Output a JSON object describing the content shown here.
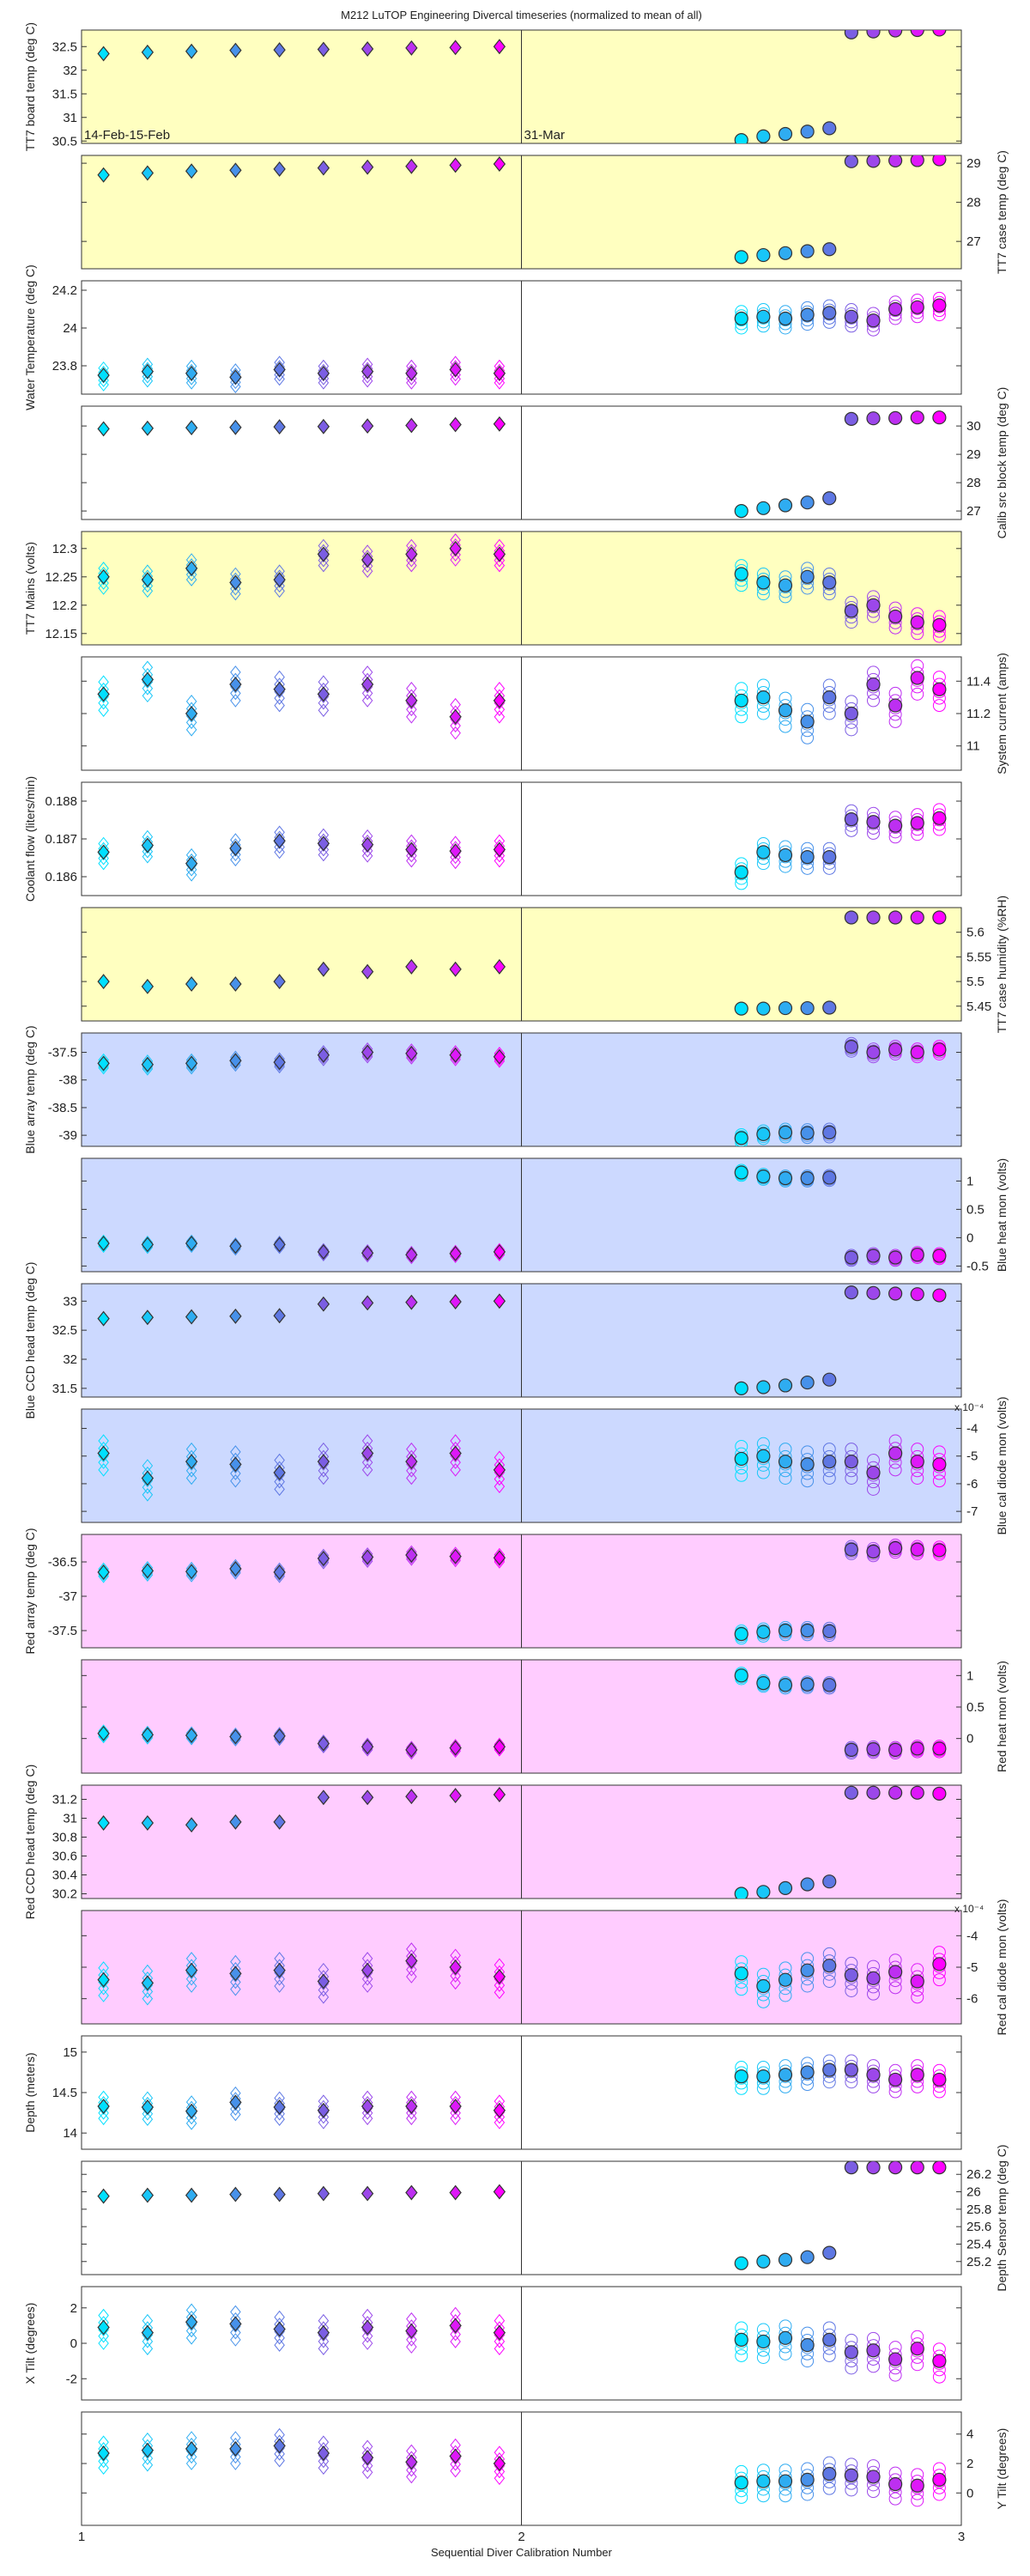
{
  "title": "M212  LuTOP Engineering Divercal timeseries (normalized to mean of all)",
  "xlabel": "Sequential Diver Calibration Number",
  "x_ticks": [
    "1",
    "2",
    "3"
  ],
  "annotations": [
    {
      "panel": 0,
      "text": "14-Feb-15-Feb",
      "x": 1.0
    },
    {
      "panel": 0,
      "text": "31-Mar",
      "x": 2.0
    }
  ],
  "colors": {
    "yellow_bg": "#ffffc0",
    "blue_bg": "#ccd9ff",
    "pink_bg": "#ffccff",
    "white_bg": "#ffffff",
    "gradient_start": "#00e0ff",
    "gradient_mid": "#6a6ae0",
    "gradient_end": "#ff00ff"
  },
  "chart_data": {
    "type": "scatter",
    "xlim": [
      1,
      3
    ],
    "group1_x": [
      1.05,
      1.15,
      1.25,
      1.35,
      1.45,
      1.55,
      1.65,
      1.75,
      1.85,
      1.95
    ],
    "group2_x": [
      2.5,
      2.55,
      2.6,
      2.65,
      2.7,
      2.75,
      2.8,
      2.85,
      2.9,
      2.95
    ],
    "marker_group1": "diamond",
    "marker_group2": "circle",
    "panels": [
      {
        "ylabel": "TT7 board temp (deg C)",
        "side": "left",
        "bg": "yellow",
        "ylim": [
          30.45,
          32.85
        ],
        "yticks": [
          "30.5",
          "31",
          "31.5",
          "32",
          "32.5"
        ],
        "g1_means": [
          32.35,
          32.38,
          32.4,
          32.42,
          32.43,
          32.44,
          32.45,
          32.47,
          32.48,
          32.5
        ],
        "g2_means": [
          30.52,
          30.6,
          30.65,
          30.7,
          30.77,
          32.8,
          32.82,
          32.84,
          32.85,
          32.86
        ],
        "spread": 0
      },
      {
        "ylabel": "TT7 case temp (deg C)",
        "side": "right",
        "bg": "yellow",
        "ylim": [
          26.3,
          29.2
        ],
        "yticks": [
          "27",
          "28",
          "29"
        ],
        "g1_means": [
          28.7,
          28.75,
          28.8,
          28.82,
          28.85,
          28.88,
          28.9,
          28.92,
          28.95,
          28.98
        ],
        "g2_means": [
          26.6,
          26.65,
          26.7,
          26.75,
          26.8,
          29.05,
          29.06,
          29.07,
          29.08,
          29.1
        ],
        "spread": 0
      },
      {
        "ylabel": "Water Temperature (deg C)",
        "side": "left",
        "bg": "white",
        "ylim": [
          23.65,
          24.25
        ],
        "yticks": [
          "23.8",
          "24",
          "24.2"
        ],
        "g1_means": [
          23.75,
          23.77,
          23.76,
          23.74,
          23.78,
          23.76,
          23.77,
          23.76,
          23.78,
          23.76
        ],
        "g2_means": [
          24.05,
          24.06,
          24.05,
          24.07,
          24.08,
          24.06,
          24.04,
          24.1,
          24.11,
          24.12
        ],
        "spread": 0.05
      },
      {
        "ylabel": "Calib src block temp (deg C)",
        "side": "right",
        "bg": "white",
        "ylim": [
          26.7,
          30.7
        ],
        "yticks": [
          "27",
          "28",
          "29",
          "30"
        ],
        "g1_means": [
          29.9,
          29.92,
          29.94,
          29.95,
          29.97,
          29.98,
          30.0,
          30.02,
          30.05,
          30.07
        ],
        "g2_means": [
          27.0,
          27.1,
          27.2,
          27.3,
          27.45,
          30.25,
          30.27,
          30.28,
          30.3,
          30.3
        ],
        "spread": 0
      },
      {
        "ylabel": "TT7 Mains  (volts)",
        "side": "left",
        "bg": "yellow",
        "ylim": [
          12.13,
          12.33
        ],
        "yticks": [
          "12.15",
          "12.2",
          "12.25",
          "12.3"
        ],
        "g1_means": [
          12.25,
          12.245,
          12.265,
          12.24,
          12.245,
          12.29,
          12.28,
          12.29,
          12.3,
          12.29
        ],
        "g2_means": [
          12.255,
          12.24,
          12.235,
          12.25,
          12.24,
          12.19,
          12.2,
          12.18,
          12.17,
          12.165
        ],
        "spread": 0.02
      },
      {
        "ylabel": "System current (amps)",
        "side": "right",
        "bg": "white",
        "ylim": [
          10.85,
          11.55
        ],
        "yticks": [
          "11",
          "11.2",
          "11.4"
        ],
        "g1_means": [
          11.32,
          11.41,
          11.2,
          11.38,
          11.35,
          11.32,
          11.38,
          11.28,
          11.18,
          11.28
        ],
        "g2_means": [
          11.28,
          11.3,
          11.22,
          11.15,
          11.3,
          11.2,
          11.38,
          11.25,
          11.42,
          11.35
        ],
        "spread": 0.1
      },
      {
        "ylabel": "Coolant flow (liters/min)",
        "side": "left",
        "bg": "white",
        "ylim": [
          0.1855,
          0.1885
        ],
        "yticks": [
          "0.186",
          "0.187",
          "0.188"
        ],
        "g1_means": [
          0.18665,
          0.18683,
          0.18635,
          0.18675,
          0.18695,
          0.18688,
          0.18685,
          0.18672,
          0.18668,
          0.18672
        ],
        "g2_means": [
          0.18612,
          0.18665,
          0.18657,
          0.18652,
          0.18652,
          0.18752,
          0.18745,
          0.18735,
          0.18742,
          0.18755
        ],
        "spread": 0.0003
      },
      {
        "ylabel": "TT7 case humidity (%RH)",
        "side": "right",
        "bg": "yellow",
        "ylim": [
          5.42,
          5.65
        ],
        "yticks": [
          "5.45",
          "5.5",
          "5.55",
          "5.6"
        ],
        "g1_means": [
          5.5,
          5.49,
          5.495,
          5.495,
          5.5,
          5.525,
          5.52,
          5.53,
          5.525,
          5.53
        ],
        "g2_means": [
          5.445,
          5.445,
          5.446,
          5.446,
          5.447,
          5.63,
          5.63,
          5.63,
          5.63,
          5.63
        ],
        "spread": 0
      },
      {
        "ylabel": "Blue array temp (deg C)",
        "side": "left",
        "bg": "blue",
        "ylim": [
          -39.2,
          -37.15
        ],
        "yticks": [
          "-39",
          "-38.5",
          "-38",
          "-37.5"
        ],
        "g1_means": [
          -37.7,
          -37.72,
          -37.7,
          -37.65,
          -37.68,
          -37.55,
          -37.5,
          -37.52,
          -37.55,
          -37.58
        ],
        "g2_means": [
          -39.05,
          -38.98,
          -38.95,
          -38.96,
          -38.95,
          -37.4,
          -37.5,
          -37.45,
          -37.5,
          -37.45
        ],
        "spread": 0.08
      },
      {
        "ylabel": "Blue heat mon (volts)",
        "side": "right",
        "bg": "blue",
        "ylim": [
          -0.6,
          1.4
        ],
        "yticks": [
          "-0.5",
          "0",
          "0.5",
          "1"
        ],
        "g1_means": [
          -0.1,
          -0.12,
          -0.1,
          -0.15,
          -0.12,
          -0.25,
          -0.27,
          -0.3,
          -0.28,
          -0.25
        ],
        "g2_means": [
          1.15,
          1.08,
          1.05,
          1.05,
          1.06,
          -0.35,
          -0.32,
          -0.35,
          -0.3,
          -0.32
        ],
        "spread": 0.05
      },
      {
        "ylabel": "Blue CCD head temp (deg C)",
        "side": "left",
        "bg": "blue",
        "ylim": [
          31.35,
          33.3
        ],
        "yticks": [
          "31.5",
          "32",
          "32.5",
          "33"
        ],
        "g1_means": [
          32.7,
          32.72,
          32.73,
          32.74,
          32.75,
          32.95,
          32.97,
          32.98,
          32.99,
          33.0
        ],
        "g2_means": [
          31.5,
          31.52,
          31.55,
          31.6,
          31.65,
          33.15,
          33.14,
          33.13,
          33.12,
          33.1
        ],
        "spread": 0
      },
      {
        "ylabel": "Blue cal diode mon (volts)",
        "side": "right",
        "bg": "blue",
        "ylim": [
          -7.4,
          -3.3
        ],
        "yticks": [
          "-7",
          "-6",
          "-5",
          "-4"
        ],
        "scale_label": "x 10⁻⁴",
        "g1_means": [
          -4.9,
          -5.8,
          -5.2,
          -5.3,
          -5.6,
          -5.2,
          -4.9,
          -5.2,
          -4.9,
          -5.5
        ],
        "g2_means": [
          -5.1,
          -5.0,
          -5.2,
          -5.3,
          -5.2,
          -5.2,
          -5.6,
          -4.9,
          -5.2,
          -5.3
        ],
        "spread": 0.6
      },
      {
        "ylabel": "Red array temp (deg C)",
        "side": "left",
        "bg": "pink",
        "ylim": [
          -37.75,
          -36.1
        ],
        "yticks": [
          "-37.5",
          "-37",
          "-36.5"
        ],
        "g1_means": [
          -36.65,
          -36.63,
          -36.64,
          -36.6,
          -36.65,
          -36.45,
          -36.43,
          -36.4,
          -36.42,
          -36.44
        ],
        "g2_means": [
          -37.55,
          -37.52,
          -37.5,
          -37.5,
          -37.51,
          -36.32,
          -36.35,
          -36.3,
          -36.32,
          -36.33
        ],
        "spread": 0.06
      },
      {
        "ylabel": "Red heat mon (volts)",
        "side": "right",
        "bg": "pink",
        "ylim": [
          -0.55,
          1.25
        ],
        "yticks": [
          "0",
          "0.5",
          "1"
        ],
        "g1_means": [
          0.08,
          0.06,
          0.05,
          0.03,
          0.04,
          -0.08,
          -0.13,
          -0.18,
          -0.15,
          -0.13
        ],
        "g2_means": [
          1.0,
          0.88,
          0.85,
          0.86,
          0.85,
          -0.18,
          -0.17,
          -0.18,
          -0.16,
          -0.16
        ],
        "spread": 0.05
      },
      {
        "ylabel": "Red CCD head temp (deg C)",
        "side": "left",
        "bg": "pink",
        "ylim": [
          30.15,
          31.35
        ],
        "yticks": [
          "30.2",
          "30.4",
          "30.6",
          "30.8",
          "31",
          "31.2"
        ],
        "g1_means": [
          30.95,
          30.95,
          30.93,
          30.96,
          30.96,
          31.22,
          31.22,
          31.23,
          31.24,
          31.25
        ],
        "g2_means": [
          30.2,
          30.22,
          30.26,
          30.3,
          30.33,
          31.27,
          31.27,
          31.27,
          31.27,
          31.26
        ],
        "spread": 0
      },
      {
        "ylabel": "Red cal diode mon (volts)",
        "side": "right",
        "bg": "pink",
        "ylim": [
          -6.8,
          -3.2
        ],
        "yticks": [
          "-6",
          "-5",
          "-4"
        ],
        "scale_label": "x 10⁻⁴",
        "g1_means": [
          -5.4,
          -5.5,
          -5.1,
          -5.2,
          -5.1,
          -5.45,
          -5.1,
          -4.8,
          -5.0,
          -5.3
        ],
        "g2_means": [
          -5.2,
          -5.6,
          -5.4,
          -5.1,
          -4.95,
          -5.25,
          -5.35,
          -5.15,
          -5.45,
          -4.9
        ],
        "spread": 0.5
      },
      {
        "ylabel": "Depth  (meters)",
        "side": "left",
        "bg": "white",
        "ylim": [
          13.8,
          15.2
        ],
        "yticks": [
          "14",
          "14.5",
          "15"
        ],
        "g1_means": [
          14.33,
          14.32,
          14.27,
          14.38,
          14.32,
          14.28,
          14.33,
          14.33,
          14.33,
          14.28
        ],
        "g2_means": [
          14.7,
          14.7,
          14.72,
          14.75,
          14.78,
          14.78,
          14.72,
          14.66,
          14.72,
          14.66
        ],
        "spread": 0.15
      },
      {
        "ylabel": "Depth Sensor temp (deg C)",
        "side": "right",
        "bg": "white",
        "ylim": [
          25.05,
          26.35
        ],
        "yticks": [
          "25.2",
          "25.4",
          "25.6",
          "25.8",
          "26",
          "26.2"
        ],
        "g1_means": [
          25.95,
          25.96,
          25.96,
          25.97,
          25.97,
          25.98,
          25.98,
          25.99,
          25.99,
          26.0
        ],
        "g2_means": [
          25.18,
          25.2,
          25.22,
          25.25,
          25.3,
          26.28,
          26.28,
          26.28,
          26.28,
          26.28
        ],
        "spread": 0
      },
      {
        "ylabel": "X Tilt  (degrees)",
        "side": "left",
        "bg": "white",
        "ylim": [
          -3.2,
          3.2
        ],
        "yticks": [
          "-2",
          "0",
          "2"
        ],
        "g1_means": [
          0.9,
          0.6,
          1.2,
          1.1,
          0.8,
          0.6,
          0.9,
          0.7,
          1.0,
          0.6
        ],
        "g2_means": [
          0.2,
          0.1,
          0.3,
          -0.1,
          0.2,
          -0.5,
          -0.4,
          -0.9,
          -0.3,
          -1.0
        ],
        "spread": 0.9
      },
      {
        "ylabel": "Y Tilt  (degrees)",
        "side": "right",
        "bg": "white",
        "ylim": [
          -2.2,
          5.5
        ],
        "yticks": [
          "0",
          "2",
          "4"
        ],
        "g1_means": [
          2.7,
          2.9,
          3.0,
          3.0,
          3.2,
          2.7,
          2.4,
          2.1,
          2.5,
          2.0
        ],
        "g2_means": [
          0.7,
          0.8,
          0.8,
          0.9,
          1.3,
          1.2,
          1.1,
          0.6,
          0.5,
          0.9
        ],
        "spread": 1.0
      }
    ]
  }
}
